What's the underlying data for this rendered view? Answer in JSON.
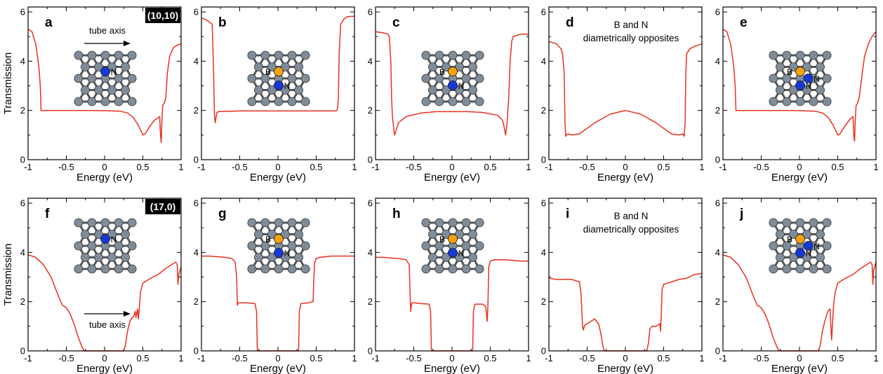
{
  "ylabel": "Transmission",
  "xlabel": "Energy (eV)",
  "chart_data": [
    {
      "type": "line",
      "panel": "a",
      "tag": "(10,10)",
      "inset_text": "tube axis",
      "arrow": true,
      "atoms": [
        {
          "t": "N",
          "c": "b",
          "lbl": "N"
        }
      ],
      "xlim": [
        -1,
        1
      ],
      "ylim": [
        0,
        6.2
      ],
      "x": [
        -1,
        -0.95,
        -0.9,
        -0.86,
        -0.84,
        -0.83,
        -0.8,
        -0.5,
        -0.2,
        0,
        0.2,
        0.3,
        0.38,
        0.44,
        0.48,
        0.5,
        0.53,
        0.58,
        0.65,
        0.7,
        0.72,
        0.73,
        0.74,
        0.75,
        0.76,
        0.78,
        0.8,
        0.82,
        0.85,
        0.9,
        0.95,
        1
      ],
      "y": [
        5.3,
        5.2,
        4.7,
        3.8,
        3.0,
        2.0,
        2.0,
        2.0,
        2.0,
        1.99,
        1.97,
        1.9,
        1.7,
        1.4,
        1.15,
        1.0,
        1.05,
        1.3,
        1.6,
        1.7,
        1.75,
        1.0,
        0.7,
        1.7,
        2.2,
        2.3,
        2.5,
        3.5,
        4.2,
        4.55,
        4.65,
        4.7
      ]
    },
    {
      "type": "line",
      "panel": "b",
      "atoms": [
        {
          "t": "B",
          "c": "o",
          "lbl": "B"
        },
        {
          "t": "N",
          "c": "b",
          "lbl": "N"
        }
      ],
      "xlim": [
        -1,
        1
      ],
      "ylim": [
        0,
        6.2
      ],
      "x": [
        -1,
        -0.95,
        -0.9,
        -0.86,
        -0.84,
        -0.83,
        -0.82,
        -0.81,
        -0.8,
        -0.78,
        -0.5,
        0,
        0.5,
        0.75,
        0.77,
        0.78,
        0.79,
        0.8,
        0.82,
        0.86,
        0.9,
        0.95,
        1
      ],
      "y": [
        5.75,
        5.7,
        5.6,
        5.5,
        3.5,
        1.8,
        1.5,
        1.7,
        1.9,
        1.95,
        1.98,
        1.98,
        1.98,
        1.98,
        2.0,
        2.1,
        2.5,
        4.3,
        5.5,
        5.7,
        5.8,
        5.82,
        5.82
      ]
    },
    {
      "type": "line",
      "panel": "c",
      "atoms": [
        {
          "t": "B",
          "c": "o",
          "lbl": "B"
        },
        {
          "t": "N",
          "c": "b",
          "lbl": "N"
        }
      ],
      "xlim": [
        -1,
        1
      ],
      "ylim": [
        0,
        6.2
      ],
      "x": [
        -1,
        -0.9,
        -0.84,
        -0.82,
        -0.8,
        -0.79,
        -0.78,
        -0.76,
        -0.75,
        -0.73,
        -0.7,
        -0.6,
        -0.4,
        -0.2,
        0,
        0.2,
        0.4,
        0.6,
        0.66,
        0.68,
        0.7,
        0.72,
        0.74,
        0.76,
        0.78,
        0.8,
        0.85,
        0.9,
        1
      ],
      "y": [
        5.2,
        5.15,
        5.1,
        5.0,
        4.0,
        2.5,
        1.8,
        1.2,
        1.0,
        1.2,
        1.5,
        1.75,
        1.9,
        1.95,
        1.95,
        1.95,
        1.92,
        1.8,
        1.6,
        1.35,
        1.0,
        1.5,
        2.5,
        4.0,
        4.8,
        5.0,
        5.05,
        5.1,
        5.1
      ]
    },
    {
      "type": "line",
      "panel": "d",
      "note": "B and N\ndiametrically opposites",
      "xlim": [
        -1,
        1
      ],
      "ylim": [
        0,
        6.2
      ],
      "x": [
        -1,
        -0.9,
        -0.84,
        -0.82,
        -0.8,
        -0.79,
        -0.78,
        -0.77,
        -0.75,
        -0.7,
        -0.6,
        -0.4,
        -0.2,
        0,
        0.2,
        0.4,
        0.6,
        0.7,
        0.75,
        0.77,
        0.78,
        0.79,
        0.8,
        0.84,
        0.9,
        1
      ],
      "y": [
        4.8,
        4.7,
        4.5,
        4.3,
        3.5,
        1.5,
        0.95,
        1.0,
        1.05,
        1.0,
        1.05,
        1.5,
        1.85,
        2.0,
        1.85,
        1.5,
        1.05,
        1.0,
        1.05,
        0.95,
        1.5,
        3.5,
        4.3,
        4.5,
        4.6,
        4.7
      ]
    },
    {
      "type": "line",
      "panel": "e",
      "atoms": [
        {
          "t": "B",
          "c": "o",
          "lbl": "B"
        },
        {
          "t": "N",
          "c": "b",
          "lbl": "N"
        },
        {
          "t": "N",
          "c": "b",
          "lbl": "N"
        }
      ],
      "xlim": [
        -1,
        1
      ],
      "ylim": [
        0,
        6.2
      ],
      "x": [
        -1,
        -0.95,
        -0.9,
        -0.86,
        -0.84,
        -0.83,
        -0.8,
        -0.5,
        -0.2,
        0,
        0.2,
        0.3,
        0.38,
        0.44,
        0.48,
        0.5,
        0.53,
        0.58,
        0.65,
        0.68,
        0.7,
        0.71,
        0.72,
        0.73,
        0.74,
        0.76,
        0.78,
        0.82,
        0.85,
        0.9,
        0.95,
        1
      ],
      "y": [
        5.3,
        5.2,
        4.7,
        3.8,
        3.0,
        2.0,
        2.0,
        2.0,
        2.0,
        1.99,
        1.97,
        1.9,
        1.7,
        1.4,
        1.15,
        1.0,
        1.05,
        1.3,
        1.6,
        1.7,
        1.75,
        1.0,
        0.75,
        1.7,
        2.2,
        2.3,
        2.5,
        3.5,
        4.2,
        4.7,
        5.0,
        5.2
      ]
    },
    {
      "type": "line",
      "panel": "f",
      "tag": "(17,0)",
      "inset_text": "tube axis",
      "arrow": true,
      "atoms": [
        {
          "t": "N",
          "c": "b",
          "lbl": "N"
        }
      ],
      "xlim": [
        -1,
        1
      ],
      "ylim": [
        0,
        6.2
      ],
      "x": [
        -1,
        -0.9,
        -0.8,
        -0.7,
        -0.6,
        -0.55,
        -0.52,
        -0.5,
        -0.45,
        -0.4,
        -0.35,
        -0.3,
        -0.27,
        -0.25,
        0.25,
        0.27,
        0.3,
        0.33,
        0.36,
        0.38,
        0.4,
        0.41,
        0.42,
        0.43,
        0.44,
        0.45,
        0.47,
        0.5,
        0.6,
        0.7,
        0.8,
        0.9,
        0.93,
        0.95,
        0.96,
        0.97,
        1
      ],
      "y": [
        3.9,
        3.8,
        3.5,
        3.0,
        2.2,
        1.85,
        1.8,
        1.75,
        1.5,
        1.1,
        0.6,
        0.2,
        0,
        0,
        0,
        0.2,
        0.8,
        1.2,
        1.35,
        1.4,
        1.6,
        1.35,
        1.55,
        1.7,
        1.3,
        1.55,
        2.4,
        2.75,
        2.95,
        3.1,
        3.35,
        3.55,
        3.6,
        3.5,
        2.7,
        3.1,
        3.4
      ]
    },
    {
      "type": "line",
      "panel": "g",
      "atoms": [
        {
          "t": "B",
          "c": "o",
          "lbl": "B"
        },
        {
          "t": "N",
          "c": "b",
          "lbl": "N"
        }
      ],
      "xlim": [
        -1,
        1
      ],
      "ylim": [
        0,
        6.2
      ],
      "x": [
        -1,
        -0.9,
        -0.7,
        -0.6,
        -0.56,
        -0.54,
        -0.53,
        -0.52,
        -0.5,
        -0.4,
        -0.3,
        -0.28,
        -0.27,
        -0.25,
        0.25,
        0.27,
        0.28,
        0.3,
        0.4,
        0.46,
        0.47,
        0.48,
        0.5,
        0.55,
        0.7,
        0.9,
        1
      ],
      "y": [
        3.85,
        3.85,
        3.8,
        3.75,
        3.6,
        3.0,
        1.85,
        1.95,
        1.95,
        1.95,
        1.92,
        1.6,
        0,
        0,
        0,
        0,
        1.6,
        1.92,
        1.95,
        2.0,
        3.0,
        3.6,
        3.75,
        3.8,
        3.85,
        3.85,
        3.85
      ]
    },
    {
      "type": "line",
      "panel": "h",
      "atoms": [
        {
          "t": "B",
          "c": "o",
          "lbl": "B"
        },
        {
          "t": "N",
          "c": "b",
          "lbl": "N"
        }
      ],
      "xlim": [
        -1,
        1
      ],
      "ylim": [
        0,
        6.2
      ],
      "x": [
        -1,
        -0.9,
        -0.7,
        -0.6,
        -0.56,
        -0.55,
        -0.54,
        -0.53,
        -0.52,
        -0.5,
        -0.4,
        -0.3,
        -0.28,
        -0.27,
        -0.25,
        0.25,
        0.27,
        0.28,
        0.3,
        0.4,
        0.44,
        0.46,
        0.47,
        0.48,
        0.5,
        0.55,
        0.7,
        0.9,
        1
      ],
      "y": [
        3.8,
        3.8,
        3.75,
        3.7,
        3.5,
        2.5,
        1.6,
        1.9,
        1.95,
        1.95,
        1.92,
        1.9,
        1.6,
        0,
        0,
        0,
        0,
        1.6,
        1.9,
        1.9,
        1.8,
        1.2,
        1.9,
        3.4,
        3.65,
        3.7,
        3.7,
        3.65,
        3.65
      ]
    },
    {
      "type": "line",
      "panel": "i",
      "note": "B and N\ndiametrically opposites",
      "xlim": [
        -1,
        1
      ],
      "ylim": [
        0,
        6.2
      ],
      "x": [
        -1,
        -0.9,
        -0.7,
        -0.6,
        -0.58,
        -0.56,
        -0.55,
        -0.53,
        -0.5,
        -0.45,
        -0.4,
        -0.38,
        -0.35,
        -0.32,
        -0.3,
        -0.28,
        0.28,
        0.3,
        0.32,
        0.35,
        0.4,
        0.45,
        0.46,
        0.47,
        0.48,
        0.5,
        0.6,
        0.7,
        0.8,
        0.9,
        1
      ],
      "y": [
        2.95,
        2.9,
        2.9,
        2.8,
        2.3,
        1.0,
        0.85,
        1.05,
        1.1,
        1.2,
        1.3,
        1.2,
        1.1,
        0.7,
        0.3,
        0,
        0,
        0.3,
        0.9,
        1.0,
        1.0,
        1.1,
        0.8,
        1.6,
        2.5,
        2.7,
        2.8,
        2.9,
        2.95,
        3.1,
        3.15
      ]
    },
    {
      "type": "line",
      "panel": "j",
      "atoms": [
        {
          "t": "B",
          "c": "o",
          "lbl": "B"
        },
        {
          "t": "N",
          "c": "b",
          "lbl": "N"
        },
        {
          "t": "N",
          "c": "b",
          "lbl": "N"
        }
      ],
      "xlim": [
        -1,
        1
      ],
      "ylim": [
        0,
        6.2
      ],
      "x": [
        -1,
        -0.9,
        -0.8,
        -0.7,
        -0.6,
        -0.55,
        -0.52,
        -0.5,
        -0.45,
        -0.4,
        -0.35,
        -0.3,
        -0.27,
        -0.25,
        0.25,
        0.27,
        0.3,
        0.33,
        0.36,
        0.38,
        0.4,
        0.41,
        0.42,
        0.43,
        0.44,
        0.45,
        0.47,
        0.5,
        0.6,
        0.7,
        0.8,
        0.9,
        0.93,
        0.95,
        0.96,
        0.97,
        1
      ],
      "y": [
        3.9,
        3.8,
        3.5,
        3.0,
        2.2,
        1.85,
        1.8,
        1.75,
        1.5,
        1.1,
        0.6,
        0.2,
        0,
        0,
        0,
        0.2,
        0.8,
        1.2,
        1.5,
        1.65,
        1.7,
        1.0,
        0.45,
        1.0,
        1.6,
        2.0,
        2.4,
        2.75,
        2.95,
        3.1,
        3.35,
        3.55,
        3.6,
        3.5,
        2.7,
        3.3,
        3.6
      ]
    }
  ],
  "style": {
    "line_color": "#e8301f",
    "carbon": "#7f8c99",
    "boron": "#f4a20b",
    "nitrogen": "#1738d6",
    "tag_bg": "#000000",
    "tag_fg": "#ffffff"
  }
}
